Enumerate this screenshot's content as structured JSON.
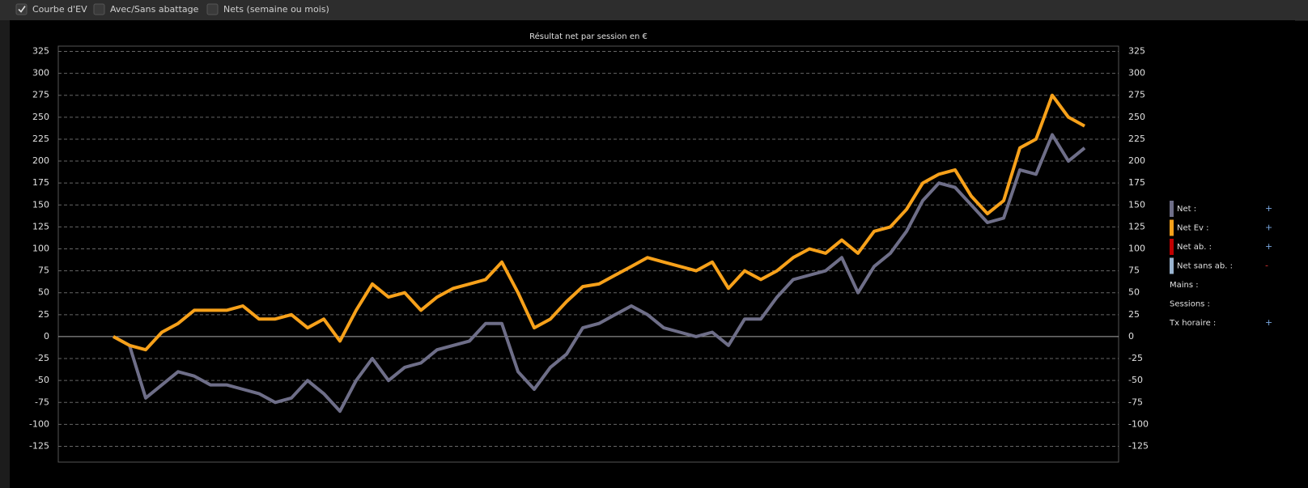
{
  "toolbar": {
    "checkboxes": [
      {
        "label": "Courbe d'EV",
        "checked": true
      },
      {
        "label": "Avec/Sans abattage",
        "checked": false
      },
      {
        "label": "Nets (semaine ou mois)",
        "checked": false
      }
    ]
  },
  "chart_data": {
    "type": "line",
    "title": "Résultat net par session en €",
    "ylim": [
      -143,
      331
    ],
    "yticks": [
      -125,
      -100,
      -75,
      -50,
      -25,
      0,
      25,
      50,
      75,
      100,
      125,
      150,
      175,
      200,
      225,
      250,
      275,
      300,
      325
    ],
    "grid": true,
    "series": [
      {
        "name": "Net :",
        "color": "#6e6e88",
        "sign": "+",
        "values": [
          0,
          -10,
          -70,
          -55,
          -40,
          -45,
          -55,
          -55,
          -60,
          -65,
          -75,
          -70,
          -50,
          -65,
          -85,
          -50,
          -25,
          -50,
          -35,
          -30,
          -15,
          -10,
          -5,
          15,
          15,
          -40,
          -60,
          -35,
          -20,
          10,
          15,
          25,
          35,
          25,
          10,
          5,
          0,
          5,
          -10,
          20,
          20,
          45,
          65,
          70,
          75,
          90,
          50,
          80,
          95,
          120,
          155,
          175,
          170,
          150,
          130,
          135,
          190,
          185,
          230,
          200,
          215
        ]
      },
      {
        "name": "Net Ev :",
        "color": "#f7a11a",
        "sign": "+",
        "values": [
          0,
          -10,
          -15,
          5,
          15,
          30,
          30,
          30,
          35,
          20,
          20,
          25,
          10,
          20,
          -5,
          30,
          60,
          45,
          50,
          30,
          45,
          55,
          60,
          65,
          85,
          50,
          10,
          20,
          40,
          57,
          60,
          70,
          80,
          90,
          85,
          80,
          75,
          85,
          55,
          75,
          65,
          75,
          90,
          100,
          95,
          110,
          95,
          120,
          125,
          145,
          175,
          185,
          190,
          160,
          140,
          155,
          215,
          225,
          275,
          250,
          240
        ]
      },
      {
        "name": "Net ab. :",
        "color": "#c00000",
        "sign": "+"
      },
      {
        "name": "Net sans ab. :",
        "color": "#9ab4d0",
        "sign": "-"
      }
    ],
    "stats": [
      "Mains :",
      "Sessions :",
      "Tx horaire :"
    ],
    "stats_signs": [
      "",
      "",
      "+"
    ]
  }
}
